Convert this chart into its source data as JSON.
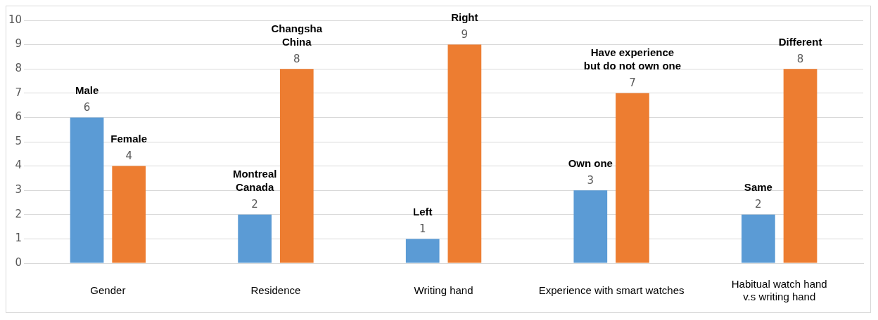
{
  "chart_data": {
    "type": "bar",
    "categories": [
      "Gender",
      "Residence",
      "Writing hand",
      "Experience with smart watches",
      "Habitual watch hand\nv.s writing hand"
    ],
    "series": [
      {
        "color": "#5b9bd5",
        "values": [
          6,
          2,
          1,
          3,
          2
        ]
      },
      {
        "color": "#ed7d31",
        "values": [
          4,
          8,
          9,
          7,
          8
        ]
      }
    ],
    "ylim": [
      0,
      10
    ],
    "yticks": [
      0,
      1,
      2,
      3,
      4,
      5,
      6,
      7,
      8,
      9,
      10
    ],
    "grid": "y",
    "legend": false,
    "data_labels": true,
    "annotations": [
      "Male",
      "Female",
      "Montreal\nCanada",
      "Changsha\nChina",
      "Left",
      "Right",
      "Own one",
      "Have experience\nbut do not own one",
      "Same",
      "Different"
    ]
  }
}
